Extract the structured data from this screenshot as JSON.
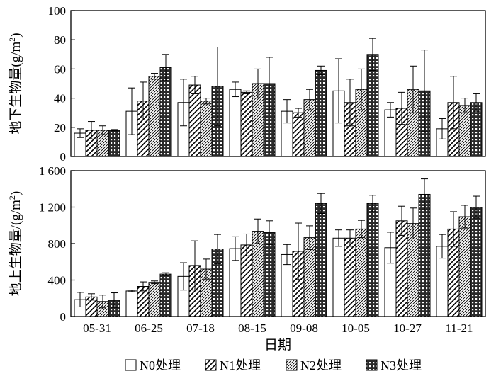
{
  "chart_data": [
    {
      "type": "bar",
      "ylabel_main": "地下生物量",
      "ylabel_unit": "(g/m",
      "ylabel_sup": "2",
      "ylabel_close": ")",
      "ylim": [
        0,
        100
      ],
      "yticks": [
        "0",
        "20",
        "40",
        "60",
        "80",
        "100"
      ],
      "ytick_values": [
        0,
        20,
        40,
        60,
        80,
        100
      ],
      "categories": [
        "05-31",
        "06-25",
        "07-18",
        "08-15",
        "09-08",
        "10-05",
        "10-27",
        "11-21"
      ],
      "series": [
        {
          "name": "N0处理",
          "values": [
            16,
            31,
            37,
            46,
            31,
            45,
            32,
            19
          ],
          "errors": [
            3,
            16,
            16,
            5,
            8,
            22,
            5,
            7
          ]
        },
        {
          "name": "N1处理",
          "values": [
            18,
            38,
            49,
            44,
            30,
            37,
            33,
            37
          ],
          "errors": [
            6,
            13,
            6,
            1,
            3,
            16,
            11,
            18
          ]
        },
        {
          "name": "N2处理",
          "values": [
            18,
            55,
            38,
            50,
            39,
            46,
            46,
            35
          ],
          "errors": [
            3,
            2,
            2,
            10,
            7,
            14,
            16,
            5
          ]
        },
        {
          "name": "N3处理",
          "values": [
            18,
            61,
            48,
            50,
            59,
            70,
            45,
            37
          ],
          "errors": [
            0.5,
            9,
            27,
            18,
            3,
            11,
            28,
            6
          ]
        }
      ]
    },
    {
      "type": "bar",
      "ylabel_main": "地上生物量",
      "ylabel_unit": "/(g/m",
      "ylabel_sup": "2",
      "ylabel_close": ")",
      "ylim": [
        0,
        1600
      ],
      "yticks": [
        "0",
        "400",
        "800",
        "1 200",
        "1 600"
      ],
      "ytick_values": [
        0,
        400,
        800,
        1200,
        1600
      ],
      "xlabel": "日期",
      "categories": [
        "05-31",
        "06-25",
        "07-18",
        "08-15",
        "09-08",
        "10-05",
        "10-27",
        "11-21"
      ],
      "series": [
        {
          "name": "N0处理",
          "values": [
            185,
            280,
            440,
            745,
            680,
            860,
            755,
            770
          ],
          "errors": [
            80,
            10,
            150,
            130,
            110,
            90,
            170,
            130
          ]
        },
        {
          "name": "N1处理",
          "values": [
            215,
            330,
            560,
            785,
            715,
            860,
            1050,
            960
          ],
          "errors": [
            35,
            50,
            270,
            120,
            310,
            90,
            160,
            190
          ]
        },
        {
          "name": "N2处理",
          "values": [
            165,
            375,
            520,
            935,
            865,
            960,
            1020,
            1095
          ],
          "errors": [
            70,
            15,
            110,
            135,
            130,
            95,
            170,
            125
          ]
        },
        {
          "name": "N3处理",
          "values": [
            180,
            465,
            740,
            920,
            1240,
            1240,
            1340,
            1200
          ],
          "errors": [
            80,
            15,
            160,
            130,
            110,
            90,
            170,
            120
          ]
        }
      ]
    }
  ],
  "legend": [
    {
      "label": "N0处理",
      "pattern": "none"
    },
    {
      "label": "N1处理",
      "pattern": "diag-wide"
    },
    {
      "label": "N2处理",
      "pattern": "diag-dense"
    },
    {
      "label": "N3处理",
      "pattern": "crosshatch"
    }
  ]
}
